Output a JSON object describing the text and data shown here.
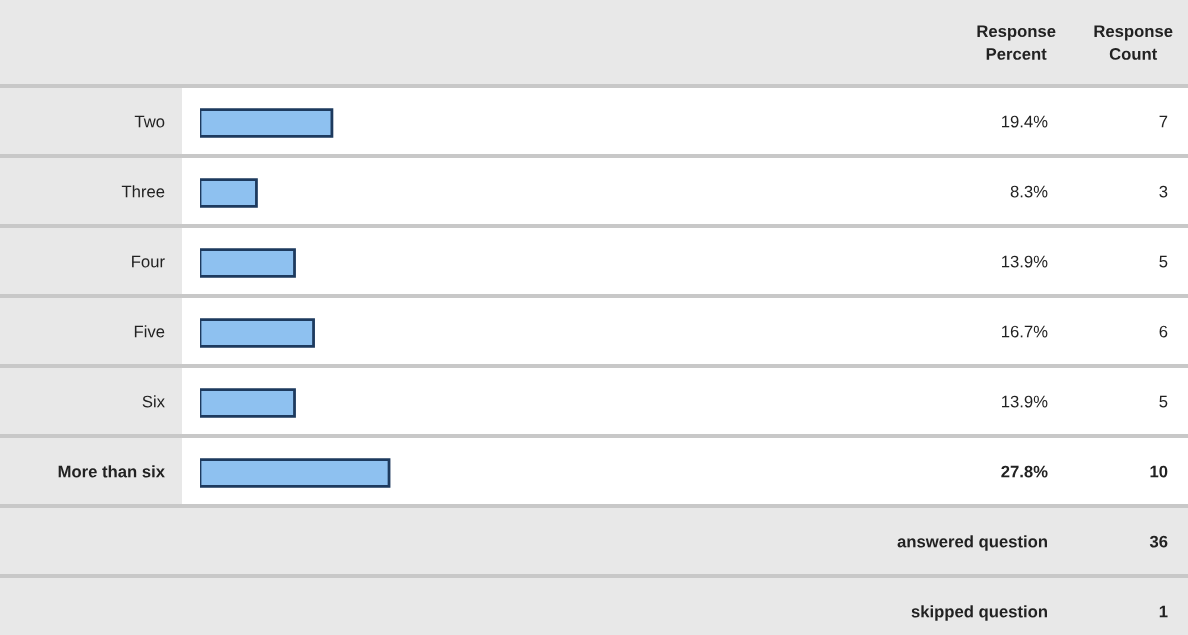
{
  "chart_data": {
    "type": "bar",
    "orientation": "horizontal",
    "categories": [
      "Two",
      "Three",
      "Four",
      "Five",
      "Six",
      "More than six"
    ],
    "values": [
      19.4,
      8.3,
      13.9,
      16.7,
      13.9,
      27.8
    ],
    "value_labels": [
      "19.4%",
      "8.3%",
      "13.9%",
      "16.7%",
      "13.9%",
      "27.8%"
    ],
    "color": "#8ec1f0",
    "annotations": [
      "Response\nPercent",
      "Response\nCount",
      "7",
      "3",
      "5",
      "6",
      "5",
      "10",
      "answered question",
      "36",
      "skipped question",
      "1"
    ]
  }
}
